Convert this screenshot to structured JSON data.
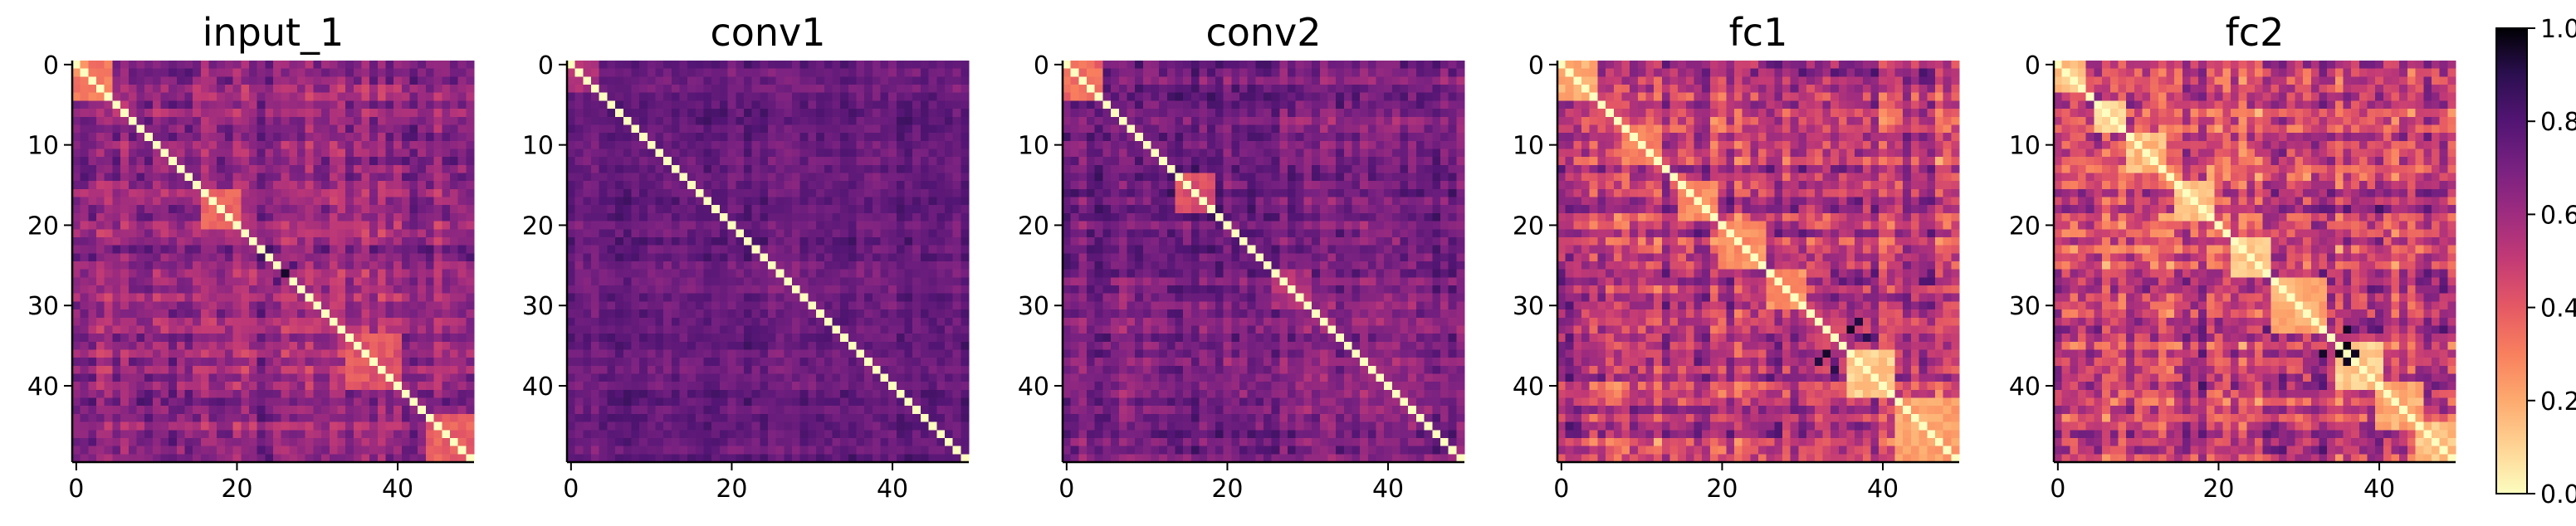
{
  "chart_data": {
    "type": "heatmap",
    "matrix_size": 50,
    "colormap": "magma_r",
    "color_range": [
      0.0,
      1.0
    ],
    "colorbar": {
      "ticks": [
        0.0,
        0.2,
        0.4,
        0.6,
        0.8,
        1.0
      ],
      "tick_labels": [
        "0.0",
        "0.2",
        "0.4",
        "0.6",
        "0.8",
        "1.0"
      ]
    },
    "x_ticks": [
      0,
      20,
      40
    ],
    "x_tick_labels": [
      "0",
      "20",
      "40"
    ],
    "y_ticks": [
      0,
      10,
      20,
      30,
      40
    ],
    "y_tick_labels": [
      "0",
      "10",
      "20",
      "30",
      "40"
    ],
    "panels": [
      {
        "title": "input_1",
        "off_diag_mean": 0.63,
        "off_diag_spread": 0.14,
        "diag": 0.0,
        "blocks": [
          [
            0,
            4,
            0.3
          ],
          [
            16,
            20,
            0.38
          ],
          [
            34,
            40,
            0.42
          ],
          [
            44,
            49,
            0.4
          ]
        ],
        "dark_cells": [
          [
            26,
            26,
            0.95
          ],
          [
            25,
            27,
            0.8
          ]
        ]
      },
      {
        "title": "conv1",
        "off_diag_mean": 0.74,
        "off_diag_spread": 0.08,
        "diag": 0.0,
        "blocks": [
          [
            0,
            3,
            0.55
          ]
        ],
        "dark_cells": []
      },
      {
        "title": "conv2",
        "off_diag_mean": 0.7,
        "off_diag_spread": 0.12,
        "diag": 0.0,
        "blocks": [
          [
            0,
            4,
            0.35
          ],
          [
            14,
            18,
            0.42
          ],
          [
            26,
            30,
            0.55
          ]
        ],
        "dark_cells": []
      },
      {
        "title": "fc1",
        "off_diag_mean": 0.5,
        "off_diag_spread": 0.2,
        "diag": 0.0,
        "blocks": [
          [
            0,
            4,
            0.2
          ],
          [
            8,
            12,
            0.3
          ],
          [
            15,
            19,
            0.28
          ],
          [
            20,
            25,
            0.25
          ],
          [
            26,
            30,
            0.28
          ],
          [
            36,
            41,
            0.12
          ],
          [
            42,
            49,
            0.22
          ]
        ],
        "dark_cells": [
          [
            33,
            36,
            0.95
          ],
          [
            32,
            37,
            0.92
          ],
          [
            34,
            38,
            0.9
          ]
        ]
      },
      {
        "title": "fc2",
        "off_diag_mean": 0.48,
        "off_diag_spread": 0.22,
        "diag": 0.0,
        "blocks": [
          [
            0,
            3,
            0.15
          ],
          [
            5,
            8,
            0.12
          ],
          [
            9,
            13,
            0.15
          ],
          [
            15,
            19,
            0.15
          ],
          [
            22,
            26,
            0.12
          ],
          [
            27,
            33,
            0.2
          ],
          [
            35,
            40,
            0.12
          ],
          [
            40,
            45,
            0.2
          ],
          [
            45,
            49,
            0.15
          ]
        ],
        "dark_cells": [
          [
            35,
            36,
            0.98
          ],
          [
            36,
            37,
            0.96
          ],
          [
            33,
            36,
            0.95
          ]
        ]
      }
    ]
  }
}
